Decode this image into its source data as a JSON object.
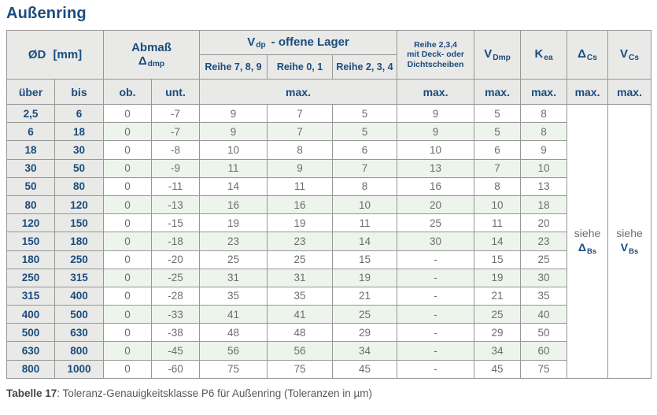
{
  "title": "Außenring",
  "colors": {
    "accent_blue": "#1a4c7e",
    "header_bg": "#e9e9e7",
    "stripe_green": "#edf4ec",
    "data_text": "#6d6d6d",
    "grid_line": "#979797"
  },
  "header": {
    "od": {
      "main": "ØD",
      "unit": "[mm]"
    },
    "abmass": {
      "line1": "Abmaß",
      "symbol": "Δ",
      "sub": "dmp"
    },
    "vdp": {
      "symbol": "V",
      "sub": "dp",
      "rest": "-  offene Lager"
    },
    "reihe_cols": [
      "Reihe 7, 8, 9",
      "Reihe 0, 1",
      "Reihe 2, 3, 4"
    ],
    "deck": [
      "Reihe 2,3,4",
      "mit Deck- oder",
      "Dichtscheiben"
    ],
    "vdmp": {
      "symbol": "V",
      "sub": "Dmp"
    },
    "kea": {
      "symbol": "K",
      "sub": "ea"
    },
    "delta_cs": {
      "symbol": "Δ",
      "sub": "Cs"
    },
    "v_cs": {
      "symbol": "V",
      "sub": "Cs"
    },
    "sub_row": {
      "ueber": "über",
      "bis": "bis",
      "ob": "ob.",
      "unt": "unt.",
      "max": "max."
    }
  },
  "see_also": {
    "dbs": {
      "prefix": "siehe",
      "symbol": "Δ",
      "sub": "Bs"
    },
    "vbs": {
      "prefix": "siehe",
      "symbol": "V",
      "sub": "Bs"
    }
  },
  "table": {
    "rows": [
      [
        "2,5",
        "6",
        "0",
        "-7",
        "9",
        "7",
        "5",
        "9",
        "5",
        "8"
      ],
      [
        "6",
        "18",
        "0",
        "-7",
        "9",
        "7",
        "5",
        "9",
        "5",
        "8"
      ],
      [
        "18",
        "30",
        "0",
        "-8",
        "10",
        "8",
        "6",
        "10",
        "6",
        "9"
      ],
      [
        "30",
        "50",
        "0",
        "-9",
        "11",
        "9",
        "7",
        "13",
        "7",
        "10"
      ],
      [
        "50",
        "80",
        "0",
        "-11",
        "14",
        "11",
        "8",
        "16",
        "8",
        "13"
      ],
      [
        "80",
        "120",
        "0",
        "-13",
        "16",
        "16",
        "10",
        "20",
        "10",
        "18"
      ],
      [
        "120",
        "150",
        "0",
        "-15",
        "19",
        "19",
        "11",
        "25",
        "11",
        "20"
      ],
      [
        "150",
        "180",
        "0",
        "-18",
        "23",
        "23",
        "14",
        "30",
        "14",
        "23"
      ],
      [
        "180",
        "250",
        "0",
        "-20",
        "25",
        "25",
        "15",
        "-",
        "15",
        "25"
      ],
      [
        "250",
        "315",
        "0",
        "-25",
        "31",
        "31",
        "19",
        "-",
        "19",
        "30"
      ],
      [
        "315",
        "400",
        "0",
        "-28",
        "35",
        "35",
        "21",
        "-",
        "21",
        "35"
      ],
      [
        "400",
        "500",
        "0",
        "-33",
        "41",
        "41",
        "25",
        "-",
        "25",
        "40"
      ],
      [
        "500",
        "630",
        "0",
        "-38",
        "48",
        "48",
        "29",
        "-",
        "29",
        "50"
      ],
      [
        "630",
        "800",
        "0",
        "-45",
        "56",
        "56",
        "34",
        "-",
        "34",
        "60"
      ],
      [
        "800",
        "1000",
        "0",
        "-60",
        "75",
        "75",
        "45",
        "-",
        "45",
        "75"
      ]
    ]
  },
  "caption": {
    "label": "Tabelle 17",
    "text": ": Toleranz-Genauigkeitsklasse P6 für Außenring (Toleranzen in µm)"
  }
}
